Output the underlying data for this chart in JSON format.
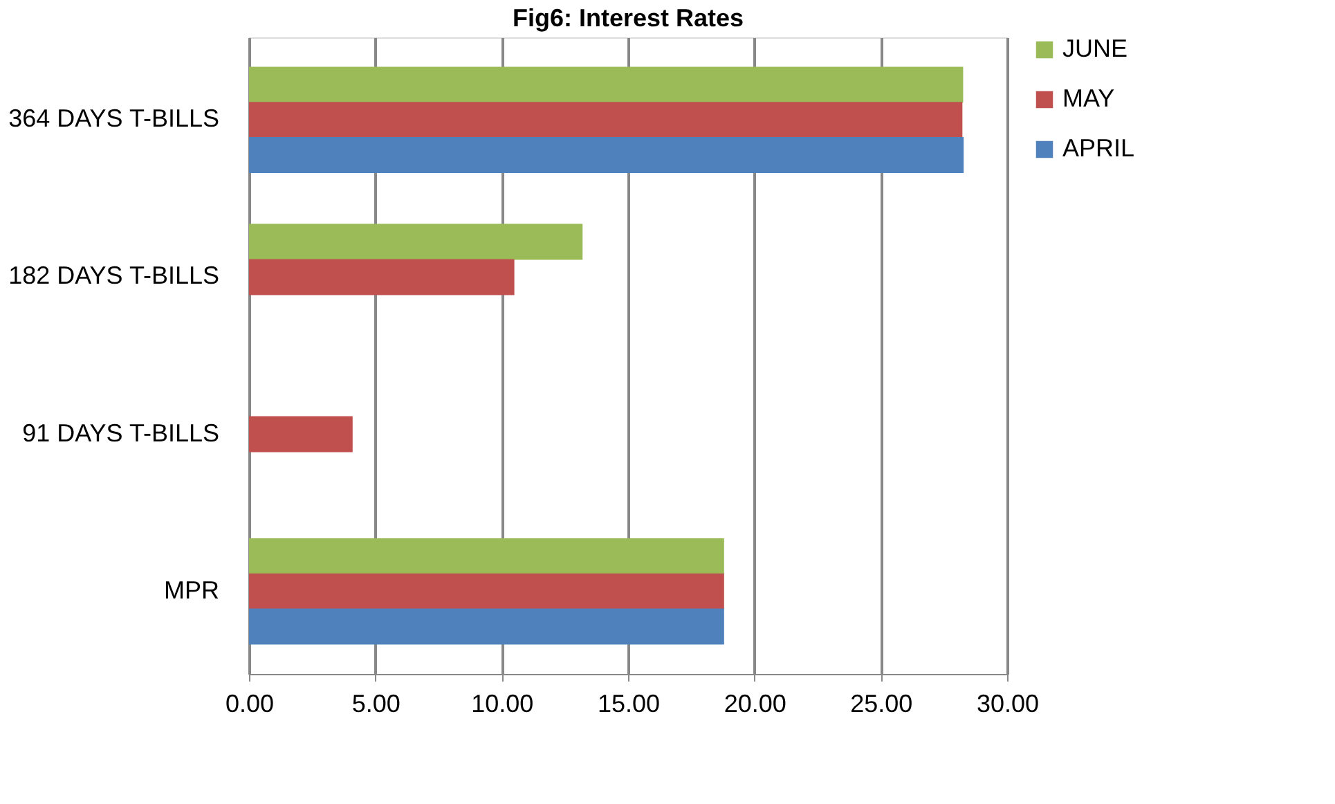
{
  "chart_data": {
    "type": "bar",
    "orientation": "horizontal",
    "title": "Fig6: Interest Rates",
    "categories": [
      "364 DAYS T-BILLS",
      "182 DAYS T-BILLS",
      "91 DAYS T-BILLS",
      "MPR"
    ],
    "series": [
      {
        "name": "JUNE",
        "color": "#9bbb59",
        "values": [
          28.26,
          13.2,
          null,
          18.8
        ]
      },
      {
        "name": "MAY",
        "color": "#c0504d",
        "values": [
          28.23,
          10.5,
          4.1,
          18.8
        ]
      },
      {
        "name": "APRIL",
        "color": "#4f81bd",
        "values": [
          28.28,
          null,
          null,
          18.8
        ]
      }
    ],
    "xlim": [
      0,
      30
    ],
    "xticks": [
      {
        "value": 0,
        "label": "0.00"
      },
      {
        "value": 5,
        "label": "5.00"
      },
      {
        "value": 10,
        "label": "10.00"
      },
      {
        "value": 15,
        "label": "15.00"
      },
      {
        "value": 20,
        "label": "20.00"
      },
      {
        "value": 25,
        "label": "25.00"
      },
      {
        "value": 30,
        "label": "30.00"
      }
    ],
    "grid": "x",
    "legend": "right"
  }
}
